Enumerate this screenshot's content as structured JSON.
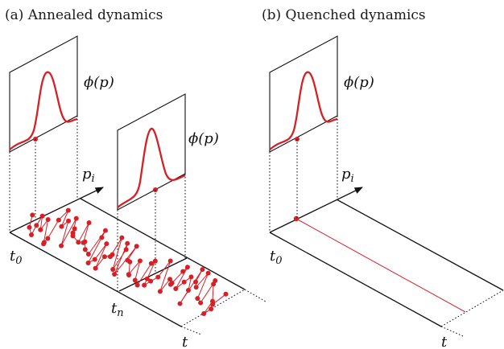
{
  "panels": {
    "a": {
      "title": "(a) Annealed dynamics"
    },
    "b": {
      "title": "(b) Quenched dynamics"
    }
  },
  "labels": {
    "phi": "ϕ(p)",
    "p": "p",
    "p_sub": "i",
    "t": "t",
    "t0": "t",
    "t0_sub": "0",
    "tn": "t",
    "tn_sub": "n"
  },
  "colors": {
    "accent": "#d71f26",
    "ink": "#111111"
  }
}
